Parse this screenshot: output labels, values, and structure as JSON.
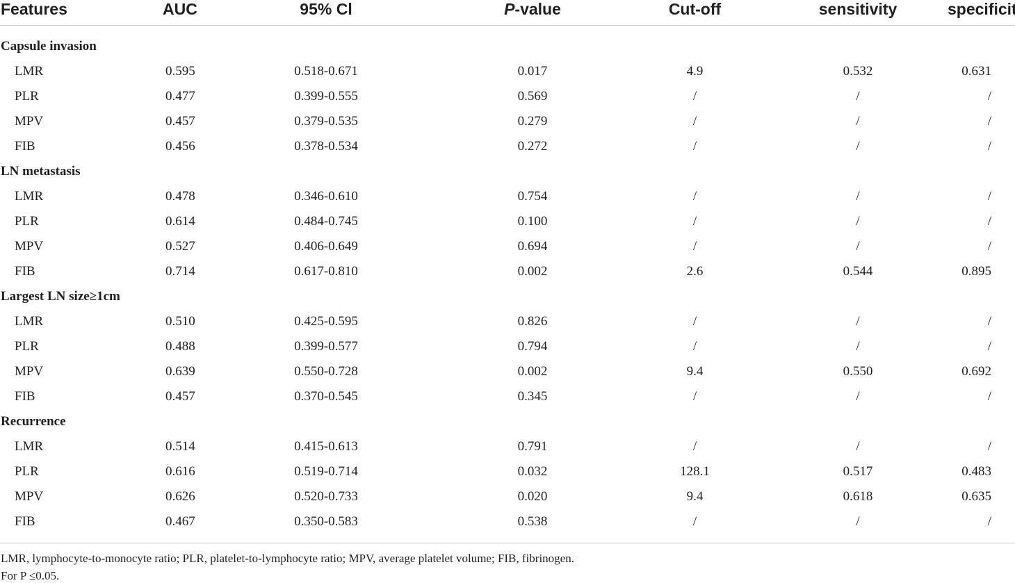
{
  "header": {
    "features": "Features",
    "auc": "AUC",
    "ci": "95% Cl",
    "p_italic": "P",
    "p_rest": "-value",
    "cutoff": "Cut-off",
    "sensitivity": "sensitivity",
    "specificity": "specificity"
  },
  "groups": [
    {
      "title": "Capsule invasion",
      "rows": [
        {
          "feature": "LMR",
          "auc": "0.595",
          "ci": "0.518-0.671",
          "p": "0.017",
          "cutoff": "4.9",
          "sensitivity": "0.532",
          "specificity": "0.631"
        },
        {
          "feature": "PLR",
          "auc": "0.477",
          "ci": "0.399-0.555",
          "p": "0.569",
          "cutoff": "/",
          "sensitivity": "/",
          "specificity": "/"
        },
        {
          "feature": "MPV",
          "auc": "0.457",
          "ci": "0.379-0.535",
          "p": "0.279",
          "cutoff": "/",
          "sensitivity": "/",
          "specificity": "/"
        },
        {
          "feature": "FIB",
          "auc": "0.456",
          "ci": "0.378-0.534",
          "p": "0.272",
          "cutoff": "/",
          "sensitivity": "/",
          "specificity": "/"
        }
      ]
    },
    {
      "title": "LN metastasis",
      "rows": [
        {
          "feature": "LMR",
          "auc": "0.478",
          "ci": "0.346-0.610",
          "p": "0.754",
          "cutoff": "/",
          "sensitivity": "/",
          "specificity": "/"
        },
        {
          "feature": "PLR",
          "auc": "0.614",
          "ci": "0.484-0.745",
          "p": "0.100",
          "cutoff": "/",
          "sensitivity": "/",
          "specificity": "/"
        },
        {
          "feature": "MPV",
          "auc": "0.527",
          "ci": "0.406-0.649",
          "p": "0.694",
          "cutoff": "/",
          "sensitivity": "/",
          "specificity": "/"
        },
        {
          "feature": "FIB",
          "auc": "0.714",
          "ci": "0.617-0.810",
          "p": "0.002",
          "cutoff": "2.6",
          "sensitivity": "0.544",
          "specificity": "0.895"
        }
      ]
    },
    {
      "title": "Largest LN size≥1cm",
      "rows": [
        {
          "feature": "LMR",
          "auc": "0.510",
          "ci": "0.425-0.595",
          "p": "0.826",
          "cutoff": "/",
          "sensitivity": "/",
          "specificity": "/"
        },
        {
          "feature": "PLR",
          "auc": "0.488",
          "ci": "0.399-0.577",
          "p": "0.794",
          "cutoff": "/",
          "sensitivity": "/",
          "specificity": "/"
        },
        {
          "feature": "MPV",
          "auc": "0.639",
          "ci": "0.550-0.728",
          "p": "0.002",
          "cutoff": "9.4",
          "sensitivity": "0.550",
          "specificity": "0.692"
        },
        {
          "feature": "FIB",
          "auc": "0.457",
          "ci": "0.370-0.545",
          "p": "0.345",
          "cutoff": "/",
          "sensitivity": "/",
          "specificity": "/"
        }
      ]
    },
    {
      "title": "Recurrence",
      "rows": [
        {
          "feature": "LMR",
          "auc": "0.514",
          "ci": "0.415-0.613",
          "p": "0.791",
          "cutoff": "/",
          "sensitivity": "/",
          "specificity": "/"
        },
        {
          "feature": "PLR",
          "auc": "0.616",
          "ci": "0.519-0.714",
          "p": "0.032",
          "cutoff": "128.1",
          "sensitivity": "0.517",
          "specificity": "0.483"
        },
        {
          "feature": "MPV",
          "auc": "0.626",
          "ci": "0.520-0.733",
          "p": "0.020",
          "cutoff": "9.4",
          "sensitivity": "0.618",
          "specificity": "0.635"
        },
        {
          "feature": "FIB",
          "auc": "0.467",
          "ci": "0.350-0.583",
          "p": "0.538",
          "cutoff": "/",
          "sensitivity": "/",
          "specificity": "/"
        }
      ]
    }
  ],
  "footnotes": {
    "abbreviations": "LMR, lymphocyte-to-monocyte ratio; PLR, platelet-to-lymphocyte ratio; MPV, average platelet volume; FIB, fibrinogen.",
    "significance": "For P ≤0.05."
  }
}
